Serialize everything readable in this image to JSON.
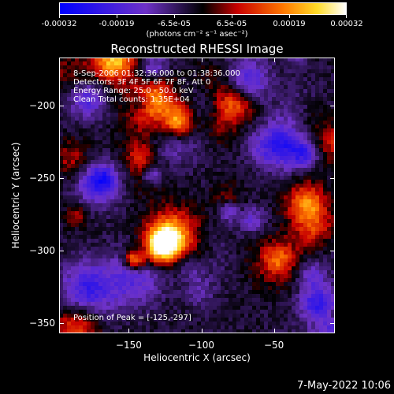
{
  "colorbar": {
    "ticks": [
      "-0.00032",
      "-0.00019",
      "-6.5e-05",
      "6.5e-05",
      "0.00019",
      "0.00032"
    ],
    "units": "(photons cm⁻² s⁻¹ asec⁻²)",
    "range": [
      -0.00032,
      0.00032
    ]
  },
  "title": "Reconstructed RHESSI Image",
  "info": {
    "time": "8-Sep-2006 01:32:36.000 to 01:38:36.000",
    "detectors": "Detectors: 3F 4F 5F 6F 7F 8F, Att 0",
    "energy": "Energy Range: 25.0 - 50.0 keV",
    "method": "Clean     Total counts: 1.35E+04",
    "peak": "Position of Peak = [-125,-297]"
  },
  "axes": {
    "xlabel": "Heliocentric X (arcsec)",
    "ylabel": "Heliocentric Y (arcsec)",
    "xlim": [
      -198,
      -8
    ],
    "ylim": [
      -357,
      -167
    ],
    "xticks": [
      -150,
      -100,
      -50
    ],
    "yticks": [
      -200,
      -250,
      -300,
      -350
    ]
  },
  "timestamp": "7-May-2022 10:06"
}
